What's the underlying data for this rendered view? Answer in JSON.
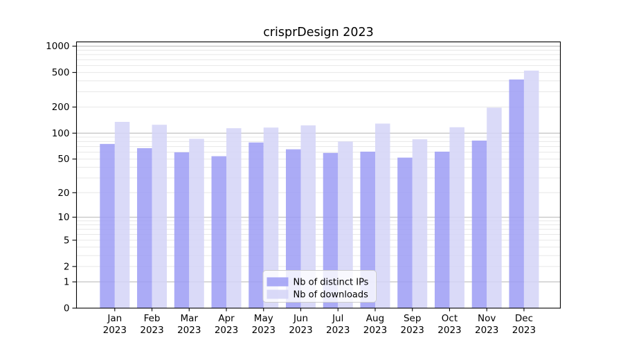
{
  "chart_data": {
    "type": "bar",
    "title": "crisprDesign 2023",
    "categories": [
      "Jan",
      "Feb",
      "Mar",
      "Apr",
      "May",
      "Jun",
      "Jul",
      "Aug",
      "Sep",
      "Oct",
      "Nov",
      "Dec"
    ],
    "year_label": "2023",
    "series": [
      {
        "name": "Nb of distinct IPs",
        "color": "#9c9cf5",
        "values": [
          75,
          67,
          60,
          54,
          78,
          65,
          59,
          61,
          52,
          61,
          82,
          415
        ]
      },
      {
        "name": "Nb of downloads",
        "color": "#d4d4f7",
        "values": [
          135,
          125,
          86,
          114,
          116,
          123,
          80,
          129,
          85,
          117,
          197,
          525
        ]
      }
    ],
    "bar_opacity": 0.85,
    "yscale": "log10(value+1)",
    "ylim": [
      0,
      1120
    ],
    "ytick_labels": [
      0,
      1,
      2,
      5,
      10,
      20,
      50,
      100,
      200,
      500,
      1000
    ],
    "major_gridlines": [
      1,
      10,
      100,
      1000
    ],
    "minor_gridline_multipliers": [
      2,
      3,
      4,
      5,
      6,
      7,
      8,
      9
    ],
    "grid": true,
    "legend": {
      "position": "lower-center"
    },
    "colors": {
      "major_grid": "#b3b3b3",
      "minor_grid": "#e7e7e7",
      "axis": "#000000",
      "legend_border": "#cccccc",
      "legend_bg_rgba": "255,255,255,0.8"
    }
  }
}
